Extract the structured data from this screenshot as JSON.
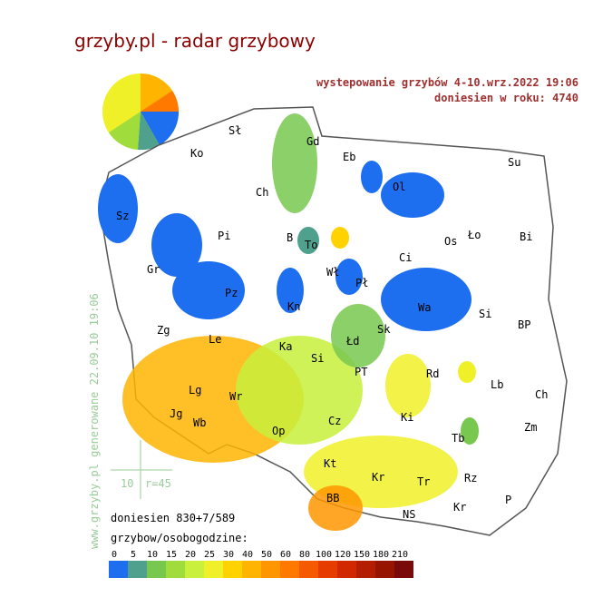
{
  "header": {
    "title": "grzyby.pl - radar grzybowy",
    "subtitle": "wystepowanie grzybów 4-10.wrz.2022 19:06",
    "yearly": "doniesien w roku: 4740"
  },
  "cities": [
    "Sł",
    "Gd",
    "Ko",
    "Eb",
    "Su",
    "Ol",
    "Ch",
    "Sz",
    "Pi",
    "B",
    "To",
    "Ło",
    "Os",
    "Bi",
    "Gr",
    "Wł",
    "Ci",
    "Pz",
    "Pł",
    "Kn",
    "Wa",
    "Si",
    "BP",
    "Zg",
    "Le",
    "Sk",
    "Łd",
    "Ka",
    "Si",
    "PT",
    "Rd",
    "Lb",
    "Lg",
    "Wr",
    "Ch",
    "Jg",
    "Wb",
    "Op",
    "Cz",
    "Ki",
    "Zm",
    "Tb",
    "Kt",
    "Kr",
    "Tr",
    "Rz",
    "BB",
    "NS",
    "Kr",
    "P"
  ],
  "side_text": "www.grzyby.pl generowane 22.09.10 19:06",
  "scale_bar": {
    "distance": "10",
    "radius": "r=45"
  },
  "reports": "doniesien 830+7/589",
  "legend": {
    "title": "grzybow/osobogodzine:",
    "items": [
      {
        "label": "0",
        "color": "#1e6ef0"
      },
      {
        "label": "5",
        "color": "#4fa08c"
      },
      {
        "label": "10",
        "color": "#78c850"
      },
      {
        "label": "15",
        "color": "#a0dc3c"
      },
      {
        "label": "20",
        "color": "#c8f03c"
      },
      {
        "label": "25",
        "color": "#f0f028"
      },
      {
        "label": "30",
        "color": "#ffd200"
      },
      {
        "label": "40",
        "color": "#ffb400"
      },
      {
        "label": "50",
        "color": "#ff9600"
      },
      {
        "label": "60",
        "color": "#ff7800"
      },
      {
        "label": "80",
        "color": "#f55a00"
      },
      {
        "label": "100",
        "color": "#e63c00"
      },
      {
        "label": "120",
        "color": "#d22800"
      },
      {
        "label": "150",
        "color": "#b41e00"
      },
      {
        "label": "180",
        "color": "#961400"
      },
      {
        "label": "210",
        "color": "#780a0a"
      }
    ]
  }
}
